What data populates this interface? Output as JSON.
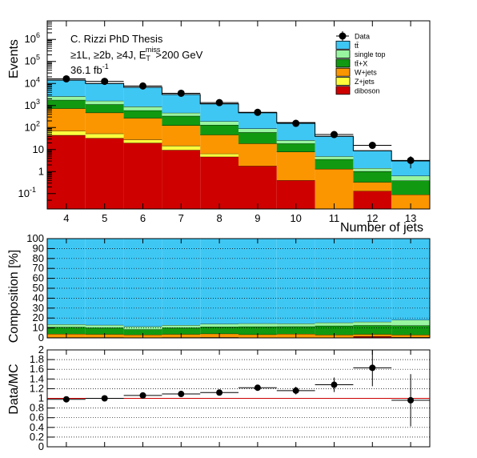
{
  "colors": {
    "ttbar": "#3fc7f4",
    "single_top": "#98f5a0",
    "ttX": "#119a11",
    "wjets": "#fb9600",
    "zjets": "#fffd3c",
    "diboson": "#cf0000",
    "ratio_line": "#cc0000"
  },
  "chart_data": [
    {
      "type": "bar",
      "stacked": true,
      "log_y": true,
      "ylabel": "Events",
      "xlabel": "Number of jets",
      "categories": [
        "4",
        "5",
        "6",
        "7",
        "8",
        "9",
        "10",
        "11",
        "12",
        "13"
      ],
      "ylim": [
        0.02,
        7000000
      ],
      "y_ticks": [
        "10^-1",
        "1",
        "10",
        "10^2",
        "10^3",
        "10^4",
        "10^5",
        "10^6"
      ],
      "annotation": {
        "line1": "C. Rizzi PhD Thesis",
        "line2_prefix": "≥1L, ≥2b, ≥4J, E",
        "line2_sub": "T",
        "line2_sup": "miss",
        "line2_suffix": ">200 GeV",
        "line3_main": "36.1 fb",
        "line3_sup": "-1"
      },
      "legend_position": "top-right",
      "legend": [
        {
          "label": "Data",
          "key": "data"
        },
        {
          "label": "tt̄",
          "key": "ttbar"
        },
        {
          "label": "single top",
          "key": "single_top"
        },
        {
          "label": "tt̄+X",
          "key": "ttX"
        },
        {
          "label": "W+jets",
          "key": "wjets"
        },
        {
          "label": "Z+jets",
          "key": "zjets"
        },
        {
          "label": "diboson",
          "key": "diboson"
        }
      ],
      "series": [
        {
          "key": "diboson",
          "values": [
            45,
            33,
            20,
            9.5,
            4.7,
            1.8,
            0.4,
            0.02,
            0.13,
            0.02
          ]
        },
        {
          "key": "zjets",
          "values": [
            25,
            20,
            8,
            5.5,
            1.8,
            0,
            0,
            0,
            0,
            0
          ]
        },
        {
          "key": "wjets",
          "values": [
            660,
            420,
            240,
            110,
            40,
            17,
            7.5,
            1.3,
            0.2,
            0.07
          ]
        },
        {
          "key": "ttX",
          "values": [
            1050,
            660,
            330,
            210,
            85,
            42,
            11,
            2.3,
            0.7,
            0.3
          ]
        },
        {
          "key": "single_top",
          "values": [
            830,
            500,
            300,
            130,
            60,
            29,
            7.5,
            1.3,
            0.4,
            0.25
          ]
        },
        {
          "key": "ttbar",
          "values": [
            11500,
            8400,
            5800,
            2700,
            1000,
            380,
            140,
            35,
            7.4,
            2.4
          ]
        }
      ],
      "data_points": [
        {
          "x": "4",
          "y": 16200,
          "err": 130
        },
        {
          "x": "5",
          "y": 12500,
          "err": 110
        },
        {
          "x": "6",
          "y": 7700,
          "err": 90
        },
        {
          "x": "7",
          "y": 3600,
          "err": 60
        },
        {
          "x": "8",
          "y": 1350,
          "err": 37
        },
        {
          "x": "9",
          "y": 490,
          "err": 22
        },
        {
          "x": "10",
          "y": 155,
          "err": 12
        },
        {
          "x": "11",
          "y": 48,
          "err": 7
        },
        {
          "x": "12",
          "y": 15.5,
          "err": 4
        },
        {
          "x": "13",
          "y": 3.2,
          "err": 1.8
        }
      ]
    },
    {
      "type": "area",
      "stacked": true,
      "ylabel": "Composition [%]",
      "ylim": [
        0,
        100
      ],
      "y_ticks": [
        "0",
        "10",
        "20",
        "30",
        "40",
        "50",
        "60",
        "70",
        "80",
        "90",
        "100"
      ],
      "grid": true,
      "series": [
        {
          "key": "diboson",
          "values": [
            0.3,
            0.3,
            0.3,
            0.3,
            0.4,
            0.3,
            0.3,
            0.1,
            1.5,
            0.6
          ]
        },
        {
          "key": "zjets",
          "values": [
            0.2,
            0.2,
            0.1,
            0.2,
            0.2,
            0.1,
            0.1,
            0.1,
            0.1,
            0.1
          ]
        },
        {
          "key": "wjets",
          "values": [
            3.5,
            3.2,
            2.8,
            3.2,
            3.6,
            3.0,
            3.6,
            2.9,
            2.1,
            2.4
          ]
        },
        {
          "key": "ttX",
          "values": [
            6.9,
            6.6,
            5.4,
            6.6,
            7.0,
            8.0,
            7.5,
            9.1,
            9.0,
            9.4
          ]
        },
        {
          "key": "single_top",
          "values": [
            2.8,
            2.7,
            2.9,
            2.6,
            3.0,
            3.2,
            3.0,
            3.2,
            3.5,
            5.5
          ]
        },
        {
          "key": "ttbar",
          "values": [
            86.3,
            87.0,
            88.5,
            87.1,
            85.8,
            85.4,
            85.5,
            84.6,
            83.8,
            82.0
          ]
        }
      ]
    },
    {
      "type": "scatter",
      "ylabel": "Data/MC",
      "ylim": [
        0,
        2
      ],
      "y_ticks": [
        "0",
        "0.2",
        "0.4",
        "0.6",
        "0.8",
        "1",
        "1.2",
        "1.4",
        "1.6",
        "1.8",
        "2"
      ],
      "grid": true,
      "reference_line": 1,
      "points": [
        {
          "x": "4",
          "y": 0.98,
          "err": 0.02
        },
        {
          "x": "5",
          "y": 1.0,
          "err": 0.02
        },
        {
          "x": "6",
          "y": 1.06,
          "err": 0.02
        },
        {
          "x": "7",
          "y": 1.09,
          "err": 0.025
        },
        {
          "x": "8",
          "y": 1.12,
          "err": 0.04
        },
        {
          "x": "9",
          "y": 1.22,
          "err": 0.05
        },
        {
          "x": "10",
          "y": 1.16,
          "err": 0.08
        },
        {
          "x": "11",
          "y": 1.28,
          "err": 0.15
        },
        {
          "x": "12",
          "y": 1.63,
          "err": 0.38
        },
        {
          "x": "13",
          "y": 0.96,
          "err": 0.54
        }
      ]
    }
  ]
}
